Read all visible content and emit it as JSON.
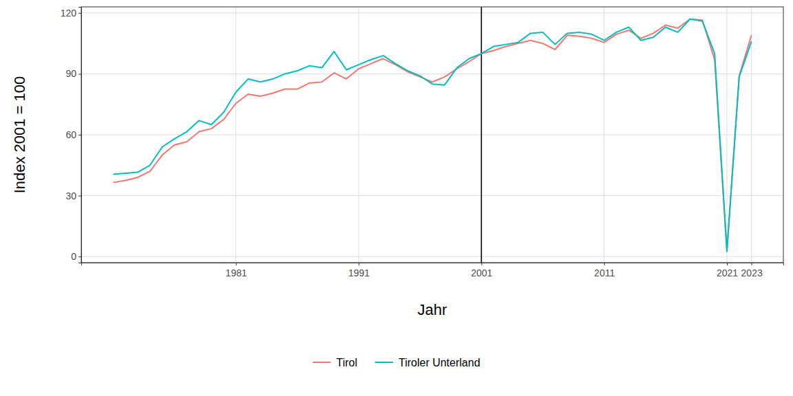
{
  "chart_data": {
    "type": "line",
    "x_label": "Jahr",
    "y_label": "Index 2001 = 100",
    "x": [
      1971,
      1972,
      1973,
      1974,
      1975,
      1976,
      1977,
      1978,
      1979,
      1980,
      1981,
      1982,
      1983,
      1984,
      1985,
      1986,
      1987,
      1988,
      1989,
      1990,
      1991,
      1992,
      1993,
      1994,
      1995,
      1996,
      1997,
      1998,
      1999,
      2000,
      2001,
      2002,
      2003,
      2004,
      2005,
      2006,
      2007,
      2008,
      2009,
      2010,
      2011,
      2012,
      2013,
      2014,
      2015,
      2016,
      2017,
      2018,
      2019,
      2020,
      2021,
      2022,
      2023
    ],
    "series": [
      {
        "name": "Tirol",
        "color": "#F8766D",
        "values": [
          36.5,
          37.5,
          39,
          42,
          50,
          55,
          56.5,
          61.5,
          63,
          67.5,
          75.5,
          80,
          79,
          80.5,
          82.5,
          82.5,
          85.5,
          86,
          90.5,
          87.5,
          92.5,
          95,
          97.5,
          94.5,
          91,
          88.5,
          86,
          88.5,
          92.5,
          96,
          100,
          101.5,
          103.5,
          105,
          106.5,
          105,
          102,
          109,
          108.5,
          107.5,
          105.5,
          109.5,
          111.5,
          107.5,
          110,
          114,
          112.5,
          117,
          116.5,
          97,
          3,
          89,
          109
        ]
      },
      {
        "name": "Tiroler Unterland",
        "color": "#00BFC4",
        "values": [
          40.5,
          41,
          41.5,
          45,
          54,
          58,
          61.5,
          67,
          65,
          71,
          81,
          87.5,
          86,
          87.5,
          90,
          91.5,
          94,
          93,
          101,
          92,
          94.5,
          97,
          99,
          95,
          91.5,
          89,
          85,
          84.5,
          93,
          97.5,
          100,
          103.5,
          104.5,
          105.5,
          110,
          110.5,
          104.5,
          110,
          110.5,
          109.5,
          106.5,
          110.5,
          113,
          106.5,
          108,
          113,
          110.5,
          117,
          116,
          100,
          2.5,
          88.5,
          106
        ]
      }
    ],
    "xlim": [
      1968.4,
      2025.6
    ],
    "xticks": [
      1981,
      1991,
      2001,
      2011,
      2021,
      2023
    ],
    "ylim": [
      -3,
      123
    ],
    "yticks": [
      0,
      30,
      60,
      90,
      120
    ],
    "vline": 2001,
    "grid": true,
    "legend": "bottom"
  }
}
